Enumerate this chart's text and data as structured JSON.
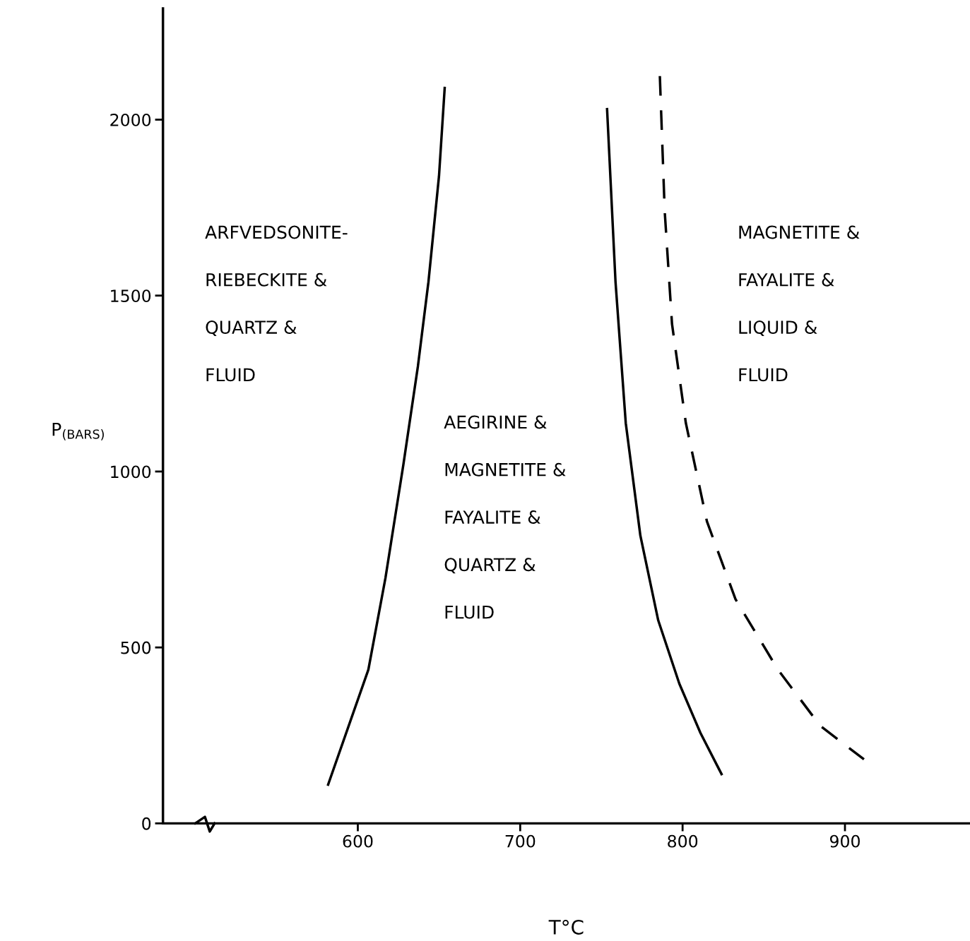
{
  "chart_data": {
    "type": "line",
    "xlabel": "T°C",
    "ylabel": "P$_{(BARS)}$",
    "xlim": [
      480,
      977
    ],
    "ylim": [
      0,
      2316
    ],
    "xticks": [
      600,
      700,
      800,
      900
    ],
    "yticks": [
      0,
      500,
      1000,
      1500,
      2000
    ],
    "grid": false,
    "legend": false,
    "marker": "none",
    "series": [
      {
        "color": "#000000",
        "line_style": "solid",
        "x": [
          581.7,
          606.5,
          617,
          628,
          637,
          643.5,
          650,
          653.5
        ],
        "values": [
          110,
          437,
          697,
          1018,
          1299,
          1539,
          1840,
          2090
        ]
      },
      {
        "color": "#000000",
        "line_style": "solid",
        "x": [
          753.5,
          758.7,
          765,
          774,
          785,
          798,
          811,
          824
        ],
        "values": [
          2030,
          1539,
          1138,
          818,
          577,
          397,
          257,
          140
        ]
      },
      {
        "color": "#000000",
        "line_style": "dashed",
        "x": [
          786,
          789,
          793.5,
          802,
          815,
          832.6,
          858.7,
          884.8,
          911.7
        ],
        "values": [
          2124,
          1739,
          1419,
          1138,
          858,
          637,
          437,
          277,
          182
        ]
      }
    ],
    "annotations": [
      "ARFVEDSONITE-",
      "RIEBECKITE &",
      "QUARTZ &",
      "FLUID",
      "AEGIRINE &",
      "MAGNETITE &",
      "FAYALITE &",
      "QUARTZ &",
      "FLUID",
      "MAGNETITE &",
      "FAYALITE &",
      "LIQUID &",
      "FLUID"
    ]
  }
}
